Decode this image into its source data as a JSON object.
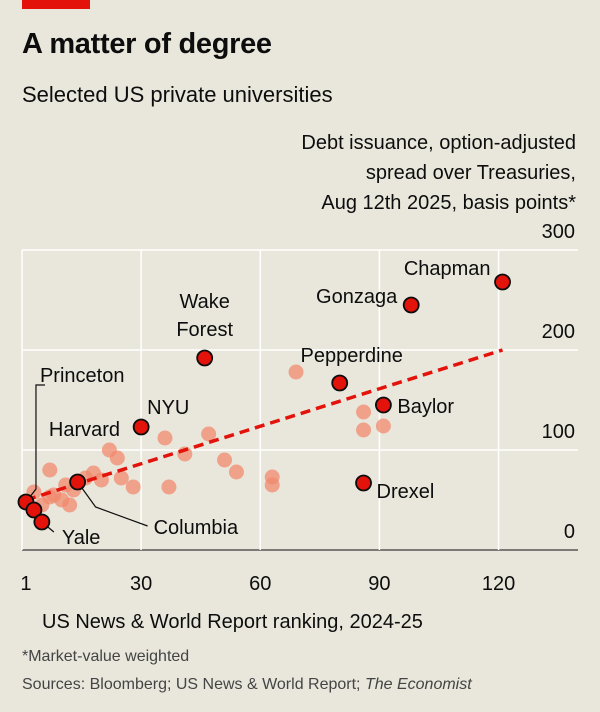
{
  "header": {
    "title": "A matter of degree",
    "subtitle": "Selected US private universities"
  },
  "footer": {
    "footnote": "*Market-value weighted",
    "source_prefix": "Sources: Bloomberg; US News & World Report;",
    "source_publication": "The Economist"
  },
  "colors": {
    "background": "#e9e7dc",
    "accent": "#e3120b",
    "highlight_point": "#e3120b",
    "other_point": "#f08a6e",
    "trend_line": "#e3120b",
    "grid": "#ffffff"
  },
  "chart_data": {
    "type": "scatter",
    "title": "A matter of degree",
    "subtitle": "Selected US private universities",
    "ylabel_lines": [
      "Debt issuance, option-adjusted",
      "spread over Treasuries,",
      "Aug 12th 2025, basis points*"
    ],
    "xlabel": "US News & World Report ranking, 2024-25",
    "xlim": [
      0,
      140
    ],
    "ylim": [
      0,
      300
    ],
    "x_ticks": [
      1,
      30,
      60,
      90,
      120
    ],
    "x_tick_labels": [
      "1",
      "30",
      "60",
      "90",
      "120"
    ],
    "x_gridlines": [
      30,
      60,
      90,
      120
    ],
    "y_ticks": [
      0,
      100,
      200,
      300
    ],
    "y_tick_labels": [
      "0",
      "100",
      "200",
      "300"
    ],
    "trend_line": {
      "x": [
        1,
        121
      ],
      "y": [
        50,
        200
      ]
    },
    "highlighted": [
      {
        "name": "Princeton",
        "label": "Princeton",
        "x": 1,
        "y": 48
      },
      {
        "name": "Harvard",
        "label": "Harvard",
        "x": 3,
        "y": 40
      },
      {
        "name": "Yale",
        "label": "Yale",
        "x": 5,
        "y": 28
      },
      {
        "name": "Columbia",
        "label": "Columbia",
        "x": 14,
        "y": 68
      },
      {
        "name": "NYU",
        "label": "NYU",
        "x": 30,
        "y": 123
      },
      {
        "name": "Wake Forest",
        "label": "Wake\nForest",
        "x": 46,
        "y": 192
      },
      {
        "name": "Gonzaga",
        "label": "Gonzaga",
        "x": 98,
        "y": 245
      },
      {
        "name": "Chapman",
        "label": "Chapman",
        "x": 121,
        "y": 268
      },
      {
        "name": "Pepperdine",
        "label": "Pepperdine",
        "x": 80,
        "y": 167
      },
      {
        "name": "Baylor",
        "label": "Baylor",
        "x": 91,
        "y": 145
      },
      {
        "name": "Drexel",
        "label": "Drexel",
        "x": 86,
        "y": 67
      }
    ],
    "others": [
      {
        "x": 3,
        "y": 58
      },
      {
        "x": 5,
        "y": 45
      },
      {
        "x": 7,
        "y": 80
      },
      {
        "x": 7,
        "y": 53
      },
      {
        "x": 8,
        "y": 55
      },
      {
        "x": 10,
        "y": 50
      },
      {
        "x": 11,
        "y": 65
      },
      {
        "x": 12,
        "y": 45
      },
      {
        "x": 13,
        "y": 60
      },
      {
        "x": 16,
        "y": 72
      },
      {
        "x": 18,
        "y": 77
      },
      {
        "x": 20,
        "y": 70
      },
      {
        "x": 22,
        "y": 100
      },
      {
        "x": 24,
        "y": 92
      },
      {
        "x": 25,
        "y": 72
      },
      {
        "x": 28,
        "y": 63
      },
      {
        "x": 36,
        "y": 112
      },
      {
        "x": 37,
        "y": 63
      },
      {
        "x": 41,
        "y": 96
      },
      {
        "x": 47,
        "y": 116
      },
      {
        "x": 51,
        "y": 90
      },
      {
        "x": 54,
        "y": 78
      },
      {
        "x": 63,
        "y": 73
      },
      {
        "x": 63,
        "y": 65
      },
      {
        "x": 69,
        "y": 178
      },
      {
        "x": 86,
        "y": 138
      },
      {
        "x": 86,
        "y": 120
      },
      {
        "x": 91,
        "y": 124
      }
    ]
  }
}
